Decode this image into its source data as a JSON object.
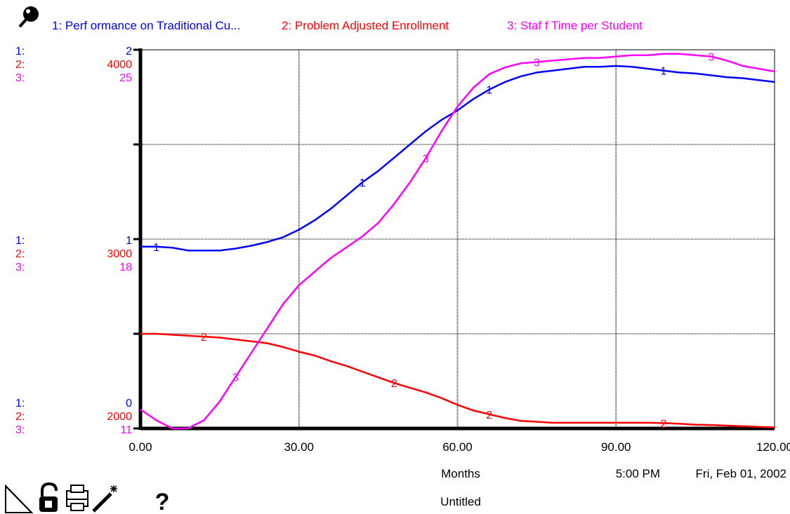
{
  "legend": [
    {
      "num": "1:",
      "label": "1: Perf ormance on Traditional Cu...",
      "color": "#0000ff"
    },
    {
      "num": "2:",
      "label": "2: Problem Adjusted Enrollment",
      "color": "#ff0000"
    },
    {
      "num": "3:",
      "label": "3: Staf f  Time per Student",
      "color": "#ff00ff"
    }
  ],
  "axis_blocks": [
    {
      "nums": [
        "1:",
        "2:",
        "3:"
      ],
      "values": [
        "2",
        "4000",
        "25"
      ]
    },
    {
      "nums": [
        "1:",
        "2:",
        "3:"
      ],
      "values": [
        "1",
        "3000",
        "18"
      ]
    },
    {
      "nums": [
        "1:",
        "2:",
        "3:"
      ],
      "values": [
        "0",
        "2000",
        "11"
      ]
    }
  ],
  "x_tick_labels": [
    "0.00",
    "30.00",
    "60.00",
    "90.00",
    "120.00"
  ],
  "footer": {
    "xlabel": "Months",
    "time": "5:00 PM",
    "date": "Fri, Feb 01, 2002",
    "title": "Untitled"
  },
  "toolbar_icons": [
    "page-corner-icon",
    "lock-icon",
    "print-icon",
    "magic-wand-icon",
    "help-icon"
  ],
  "help_glyph": "?",
  "chart_data": {
    "type": "line",
    "title": "Untitled",
    "xlabel": "Months",
    "xlim": [
      0,
      120
    ],
    "x_ticks": [
      0,
      30,
      60,
      90,
      120
    ],
    "grid": true,
    "legend_position": "top",
    "series": [
      {
        "name": "Performance on Traditional Cu...",
        "marker": "1",
        "color": "#0000ff",
        "ylim": [
          0,
          2
        ],
        "x": [
          0,
          3,
          6,
          9,
          12,
          15,
          18,
          21,
          24,
          27,
          30,
          33,
          36,
          39,
          42,
          45,
          48,
          51,
          54,
          57,
          60,
          63,
          66,
          69,
          72,
          75,
          78,
          81,
          84,
          87,
          90,
          93,
          96,
          99,
          102,
          105,
          108,
          111,
          114,
          117,
          120
        ],
        "y": [
          0.96,
          0.96,
          0.955,
          0.94,
          0.94,
          0.94,
          0.95,
          0.965,
          0.985,
          1.01,
          1.05,
          1.1,
          1.16,
          1.23,
          1.3,
          1.36,
          1.43,
          1.5,
          1.57,
          1.63,
          1.68,
          1.74,
          1.79,
          1.83,
          1.86,
          1.88,
          1.89,
          1.9,
          1.91,
          1.91,
          1.915,
          1.91,
          1.9,
          1.89,
          1.88,
          1.875,
          1.865,
          1.855,
          1.85,
          1.84,
          1.83
        ]
      },
      {
        "name": "Problem Adjusted Enrollment",
        "marker": "2",
        "color": "#ff0000",
        "ylim": [
          2000,
          4000
        ],
        "x": [
          0,
          3,
          6,
          9,
          12,
          15,
          18,
          21,
          24,
          27,
          30,
          33,
          36,
          39,
          42,
          45,
          48,
          51,
          54,
          57,
          60,
          63,
          66,
          69,
          72,
          75,
          78,
          81,
          84,
          87,
          90,
          93,
          96,
          99,
          102,
          105,
          108,
          111,
          114,
          117,
          120
        ],
        "y": [
          2500,
          2500,
          2495,
          2490,
          2485,
          2480,
          2470,
          2460,
          2450,
          2430,
          2405,
          2385,
          2355,
          2330,
          2300,
          2270,
          2240,
          2215,
          2190,
          2160,
          2125,
          2095,
          2075,
          2055,
          2040,
          2035,
          2030,
          2030,
          2030,
          2030,
          2030,
          2030,
          2030,
          2028,
          2025,
          2020,
          2018,
          2015,
          2012,
          2008,
          2005
        ]
      },
      {
        "name": "Staff Time per Student",
        "marker": "3",
        "color": "#ff00ff",
        "ylim": [
          11,
          25
        ],
        "x": [
          0,
          3,
          6,
          9,
          12,
          15,
          18,
          21,
          24,
          27,
          30,
          33,
          36,
          39,
          42,
          45,
          48,
          51,
          54,
          57,
          60,
          63,
          66,
          69,
          72,
          75,
          78,
          81,
          84,
          87,
          90,
          93,
          96,
          99,
          102,
          105,
          108,
          111,
          114,
          117,
          120
        ],
        "y": [
          11.7,
          11.3,
          11.0,
          11.0,
          11.3,
          12.0,
          12.9,
          13.8,
          14.7,
          15.6,
          16.3,
          16.8,
          17.3,
          17.7,
          18.1,
          18.6,
          19.3,
          20.1,
          21.0,
          22.0,
          22.9,
          23.6,
          24.1,
          24.35,
          24.5,
          24.55,
          24.6,
          24.65,
          24.7,
          24.7,
          24.75,
          24.8,
          24.8,
          24.85,
          24.85,
          24.8,
          24.75,
          24.6,
          24.4,
          24.3,
          24.2
        ]
      }
    ]
  }
}
